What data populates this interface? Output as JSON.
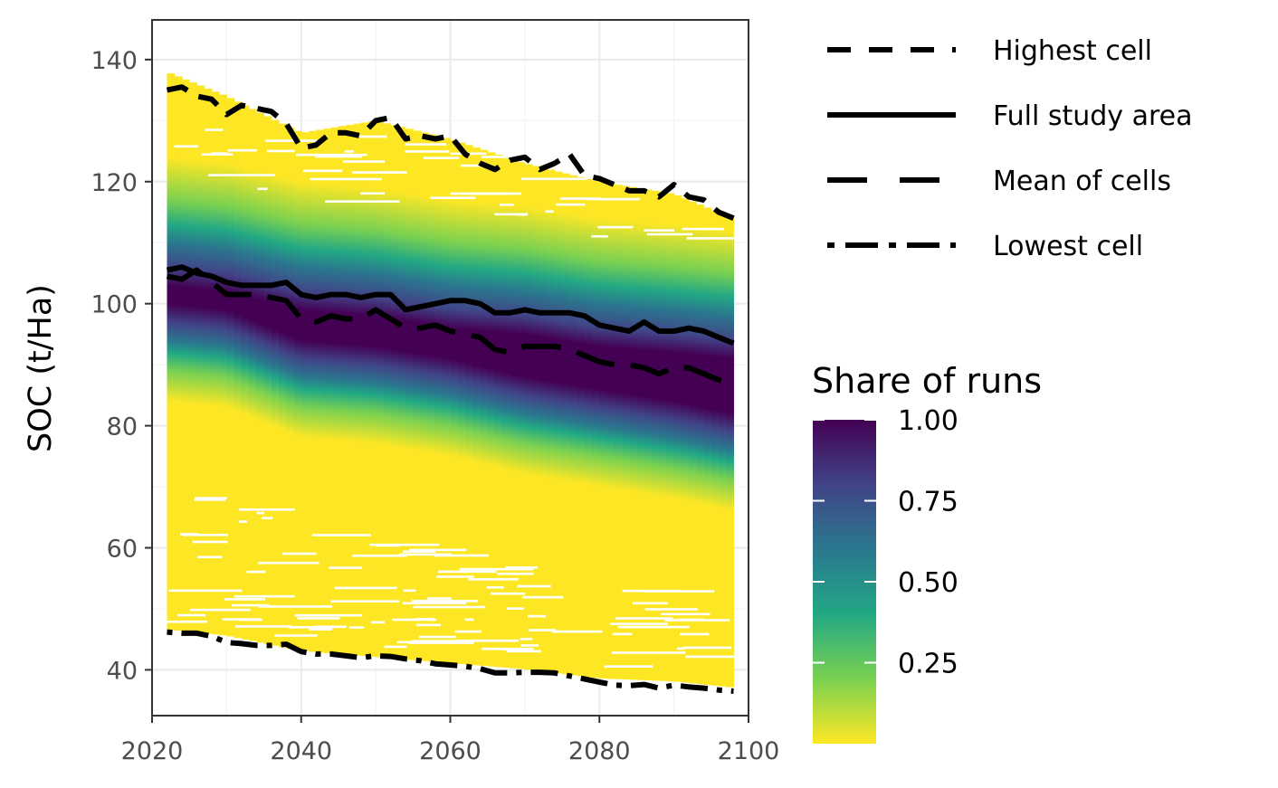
{
  "chart_data": {
    "type": "heatmap",
    "title": "",
    "xlabel": "",
    "ylabel": "SOC (t/Ha)",
    "xlim": [
      2020,
      2100
    ],
    "ylim": [
      32.5,
      146.5
    ],
    "x_ticks": [
      2020,
      2040,
      2060,
      2080,
      2100
    ],
    "y_ticks": [
      40,
      60,
      80,
      100,
      120,
      140
    ],
    "x_tick_labels": [
      "2020",
      "2040",
      "2060",
      "2080",
      "2100"
    ],
    "y_tick_labels": [
      "40",
      "60",
      "80",
      "100",
      "120",
      "140"
    ],
    "grid": true,
    "band": {
      "x": [
        2022,
        2030,
        2040,
        2050,
        2060,
        2070,
        2080,
        2090,
        2098
      ],
      "low": [
        46.0,
        45.0,
        42.5,
        41.5,
        40.5,
        39.5,
        38.0,
        37.5,
        36.5
      ],
      "dense_low": [
        91,
        90,
        85,
        84,
        82,
        79,
        77,
        75,
        73
      ],
      "dense_high": [
        118,
        117,
        114,
        113,
        111,
        110,
        108,
        107,
        106
      ],
      "high": [
        138,
        134,
        128,
        130,
        127,
        123,
        120,
        118,
        114
      ]
    },
    "series": [
      {
        "name": "Highest cell",
        "dash": "dashed",
        "x": [
          2022,
          2024,
          2026,
          2028,
          2030,
          2032,
          2034,
          2036,
          2038,
          2040,
          2042,
          2044,
          2046,
          2048,
          2050,
          2052,
          2054,
          2056,
          2058,
          2060,
          2062,
          2064,
          2066,
          2068,
          2070,
          2072,
          2074,
          2076,
          2078,
          2080,
          2082,
          2084,
          2086,
          2088,
          2090,
          2092,
          2094,
          2096,
          2098
        ],
        "values": [
          135.0,
          135.5,
          134.0,
          133.5,
          131.0,
          132.5,
          132.0,
          131.5,
          129.5,
          125.5,
          126.0,
          128.0,
          128.0,
          127.5,
          130.0,
          130.5,
          127.0,
          127.5,
          127.0,
          127.5,
          124.5,
          123.0,
          122.0,
          123.5,
          124.0,
          122.0,
          123.0,
          124.5,
          121.0,
          120.5,
          119.5,
          118.5,
          118.5,
          117.5,
          119.5,
          117.5,
          117.0,
          115.0,
          114.0
        ]
      },
      {
        "name": "Full study area",
        "dash": "solid",
        "x": [
          2022,
          2024,
          2026,
          2028,
          2030,
          2032,
          2034,
          2036,
          2038,
          2040,
          2042,
          2044,
          2046,
          2048,
          2050,
          2052,
          2054,
          2056,
          2058,
          2060,
          2062,
          2064,
          2066,
          2068,
          2070,
          2072,
          2074,
          2076,
          2078,
          2080,
          2082,
          2084,
          2086,
          2088,
          2090,
          2092,
          2094,
          2096,
          2098
        ],
        "values": [
          105.5,
          106.0,
          105.0,
          104.5,
          103.5,
          103.0,
          103.0,
          103.0,
          103.5,
          101.5,
          101.0,
          101.5,
          101.5,
          101.0,
          101.5,
          101.5,
          99.0,
          99.5,
          100.0,
          100.5,
          100.5,
          100.0,
          98.5,
          98.5,
          99.0,
          98.5,
          98.5,
          98.5,
          98.0,
          96.5,
          96.0,
          95.5,
          97.0,
          95.5,
          95.5,
          96.0,
          95.5,
          94.5,
          93.5
        ]
      },
      {
        "name": "Mean of cells",
        "dash": "longdash",
        "x": [
          2022,
          2024,
          2026,
          2028,
          2030,
          2032,
          2034,
          2036,
          2038,
          2040,
          2042,
          2044,
          2046,
          2048,
          2050,
          2052,
          2054,
          2056,
          2058,
          2060,
          2062,
          2064,
          2066,
          2068,
          2070,
          2072,
          2074,
          2076,
          2078,
          2080,
          2082,
          2084,
          2086,
          2088,
          2090,
          2092,
          2094,
          2096,
          2098
        ],
        "values": [
          104.5,
          104.0,
          105.5,
          103.5,
          101.5,
          101.5,
          101.5,
          101.0,
          100.5,
          97.5,
          97.0,
          98.0,
          97.5,
          97.5,
          99.0,
          97.5,
          96.0,
          96.0,
          96.5,
          95.5,
          95.0,
          94.5,
          92.5,
          92.0,
          93.0,
          93.0,
          93.0,
          92.5,
          91.5,
          90.5,
          90.0,
          90.0,
          89.5,
          88.5,
          89.5,
          89.5,
          88.5,
          87.5,
          87.0
        ]
      },
      {
        "name": "Lowest cell",
        "dash": "dotdash",
        "x": [
          2022,
          2024,
          2026,
          2028,
          2030,
          2032,
          2034,
          2036,
          2038,
          2040,
          2042,
          2044,
          2046,
          2048,
          2050,
          2052,
          2054,
          2056,
          2058,
          2060,
          2062,
          2064,
          2066,
          2068,
          2070,
          2072,
          2074,
          2076,
          2078,
          2080,
          2082,
          2084,
          2086,
          2088,
          2090,
          2092,
          2094,
          2096,
          2098
        ],
        "values": [
          46.2,
          46.0,
          46.0,
          45.5,
          44.5,
          44.3,
          44.0,
          44.0,
          44.2,
          43.0,
          42.6,
          42.6,
          42.3,
          42.0,
          42.3,
          42.2,
          41.8,
          41.5,
          41.0,
          40.8,
          40.6,
          40.2,
          39.5,
          39.5,
          39.6,
          39.6,
          39.5,
          39.0,
          38.5,
          38.0,
          37.5,
          37.4,
          37.6,
          37.0,
          37.5,
          37.2,
          37.0,
          36.7,
          36.5
        ]
      }
    ],
    "legend": {
      "title": "Share of runs",
      "placement": "right",
      "line_entries": [
        "Highest cell",
        "Full study area",
        "Mean of cells",
        "Lowest cell"
      ],
      "colorbar_ticks": [
        1.0,
        0.75,
        0.5,
        0.25
      ],
      "colorbar_labels": [
        "1.00",
        "0.75",
        "0.50",
        "0.25"
      ],
      "colorbar_range": [
        0.0,
        1.0
      ],
      "colormap": "viridis"
    },
    "colors": {
      "line": "#000000",
      "panel_border": "#333333",
      "grid_major": "#ebebeb",
      "grid_minor": "#f4f4f4",
      "viridis_stops": [
        "#fde725",
        "#7ad151",
        "#22a884",
        "#2a788e",
        "#414487",
        "#440154"
      ]
    }
  }
}
